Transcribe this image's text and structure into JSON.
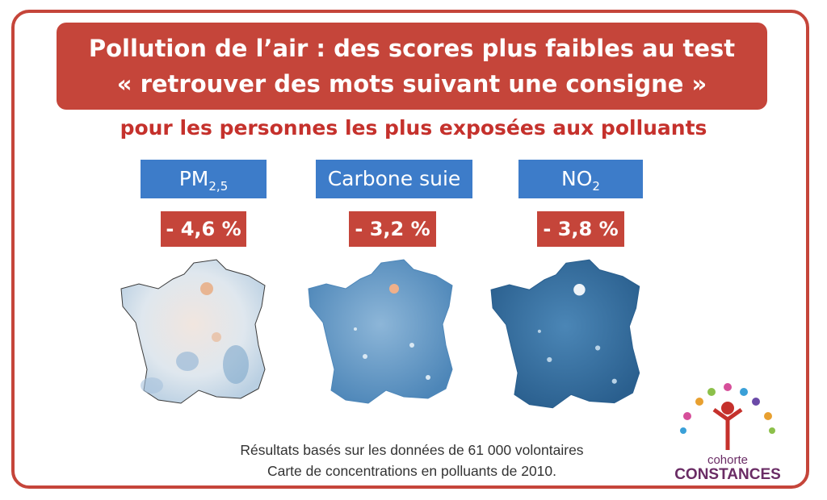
{
  "title": {
    "line1": "Pollution de l’air : des scores plus faibles au test",
    "line2": "« retrouver des mots suivant une consigne »"
  },
  "subtitle": "pour les personnes les plus exposées aux polluants",
  "pollutants": [
    {
      "label_main": "PM",
      "label_sub": "2,5",
      "change": "- 4,6 %",
      "map_palette": "diverging-blue-orange"
    },
    {
      "label_main": "Carbone suie",
      "label_sub": "",
      "change": "- 3,2 %",
      "map_palette": "blue-light"
    },
    {
      "label_main": "NO",
      "label_sub": "2",
      "change": "- 3,8 %",
      "map_palette": "blue-dark"
    }
  ],
  "footer": {
    "line1": "Résultats basés sur les données de 61 000 volontaires",
    "line2": "Carte de concentrations en polluants de 2010."
  },
  "logo": {
    "line1": "cohorte",
    "line2": "CONSTANCES"
  },
  "colors": {
    "title_bg": "#c5453a",
    "subtitle": "#c5312c",
    "label_bg": "#3d7cc9",
    "pct_bg": "#c5453a",
    "logo_text": "#6a2c65"
  }
}
